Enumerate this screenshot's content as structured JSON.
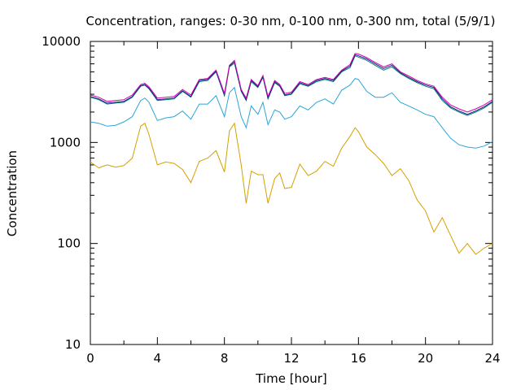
{
  "chart_data": {
    "type": "line",
    "title": "Concentration, ranges: 0-30 nm, 0-100 nm, 0-300 nm, total (5/9/1)",
    "xlabel": "Time [hour]",
    "ylabel": "Concentration",
    "xlim": [
      0,
      24
    ],
    "ylim": [
      10,
      10000
    ],
    "yscale": "log",
    "grid": false,
    "legend": "none",
    "xticks": [
      "0",
      "4",
      "8",
      "12",
      "16",
      "20",
      "24"
    ],
    "xtick_values": [
      0,
      4,
      8,
      12,
      16,
      20,
      24
    ],
    "yticks": [
      "10",
      "100",
      "1000",
      "10000"
    ],
    "ytick_values": [
      10,
      100,
      1000,
      10000
    ],
    "x": [
      0,
      0.5,
      1,
      1.5,
      2,
      2.5,
      3,
      3.25,
      3.5,
      4,
      4.5,
      5,
      5.5,
      6,
      6.5,
      7,
      7.5,
      8,
      8.3,
      8.6,
      9,
      9.3,
      9.6,
      10,
      10.3,
      10.6,
      11,
      11.3,
      11.6,
      12,
      12.5,
      13,
      13.5,
      14,
      14.5,
      15,
      15.5,
      15.8,
      16,
      16.5,
      17,
      17.5,
      18,
      18.5,
      19,
      19.5,
      20,
      20.5,
      21,
      21.5,
      22,
      22.5,
      23,
      23.5,
      24
    ],
    "series": [
      {
        "color": "#d4a000",
        "values": [
          640,
          560,
          600,
          570,
          590,
          700,
          1450,
          1550,
          1200,
          600,
          640,
          620,
          540,
          400,
          650,
          700,
          830,
          510,
          1300,
          1550,
          600,
          250,
          520,
          480,
          480,
          250,
          440,
          500,
          350,
          360,
          610,
          470,
          520,
          650,
          580,
          880,
          1150,
          1400,
          1280,
          900,
          760,
          620,
          470,
          550,
          420,
          270,
          210,
          130,
          180,
          120,
          80,
          100,
          78,
          90,
          100
        ]
      },
      {
        "color": "#2aa6d6",
        "values": [
          1600,
          1550,
          1450,
          1480,
          1600,
          1800,
          2600,
          2750,
          2500,
          1650,
          1750,
          1800,
          2050,
          1700,
          2400,
          2400,
          2900,
          1800,
          3100,
          3500,
          1800,
          1400,
          2300,
          1900,
          2500,
          1500,
          2100,
          2000,
          1700,
          1800,
          2300,
          2100,
          2500,
          2700,
          2400,
          3300,
          3700,
          4300,
          4200,
          3200,
          2800,
          2800,
          3100,
          2500,
          2300,
          2100,
          1900,
          1800,
          1400,
          1100,
          950,
          900,
          880,
          920,
          1020
        ]
      },
      {
        "color": "#00806e",
        "values": [
          2800,
          2650,
          2400,
          2450,
          2500,
          2800,
          3600,
          3700,
          3400,
          2600,
          2650,
          2700,
          3200,
          2800,
          4000,
          4100,
          5000,
          2900,
          5600,
          6100,
          3200,
          2600,
          4000,
          3500,
          4400,
          2700,
          3900,
          3600,
          2900,
          3000,
          3800,
          3600,
          4000,
          4200,
          4000,
          5000,
          5500,
          7200,
          7000,
          6500,
          5800,
          5200,
          5600,
          4800,
          4300,
          3900,
          3600,
          3400,
          2600,
          2200,
          2000,
          1850,
          2000,
          2200,
          2500
        ]
      },
      {
        "color": "#1c1c8c",
        "values": [
          2850,
          2700,
          2450,
          2500,
          2550,
          2850,
          3650,
          3750,
          3450,
          2650,
          2700,
          2750,
          3250,
          2850,
          4100,
          4200,
          5100,
          2950,
          5700,
          6300,
          3250,
          2650,
          4100,
          3550,
          4500,
          2750,
          4000,
          3650,
          2950,
          3050,
          3900,
          3650,
          4100,
          4300,
          4100,
          5100,
          5700,
          7400,
          7200,
          6700,
          6000,
          5400,
          5800,
          4900,
          4400,
          4000,
          3700,
          3500,
          2700,
          2250,
          2050,
          1900,
          2050,
          2250,
          2550
        ]
      },
      {
        "color": "#cc00aa",
        "values": [
          2950,
          2800,
          2550,
          2600,
          2650,
          2950,
          3750,
          3850,
          3550,
          2750,
          2800,
          2850,
          3350,
          2950,
          4200,
          4300,
          5200,
          3050,
          5800,
          6500,
          3350,
          2750,
          4200,
          3650,
          4600,
          2850,
          4100,
          3750,
          3050,
          3150,
          4000,
          3750,
          4200,
          4400,
          4200,
          5200,
          5900,
          7600,
          7500,
          6900,
          6200,
          5600,
          6000,
          5000,
          4550,
          4100,
          3800,
          3600,
          2800,
          2350,
          2150,
          2000,
          2150,
          2350,
          2650
        ]
      }
    ]
  }
}
